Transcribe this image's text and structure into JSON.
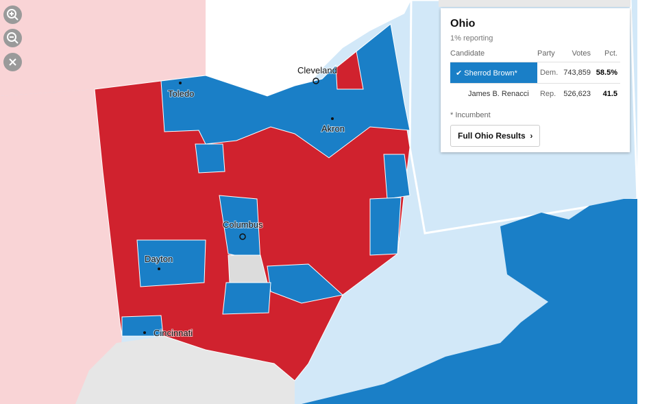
{
  "map": {
    "cities": [
      "Toledo",
      "Cleveland",
      "Akron",
      "Columbus",
      "Dayton",
      "Cincinnati"
    ]
  },
  "panel": {
    "title": "Ohio",
    "subtitle": "1% reporting",
    "table": {
      "header": [
        "Candidate",
        "Party",
        "Votes",
        "Pct."
      ],
      "rows": [
        [
          "Sherrod Brown*",
          "Dem.",
          "743,859",
          "58.5%"
        ],
        [
          "James B. Renacci",
          "Rep.",
          "526,623",
          "41.5"
        ]
      ]
    },
    "note": "* Incumbent",
    "button": "Full Ohio Results"
  }
}
